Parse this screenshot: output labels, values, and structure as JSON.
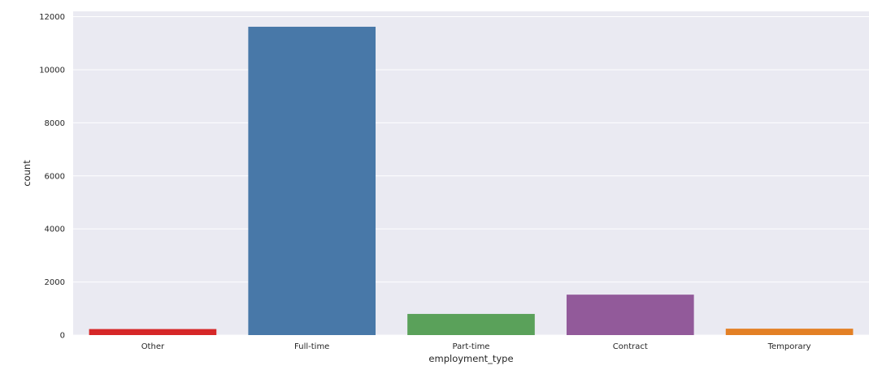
{
  "chart_data": {
    "type": "bar",
    "title": "",
    "xlabel": "employment_type",
    "ylabel": "count",
    "categories": [
      "Other",
      "Full-time",
      "Part-time",
      "Contract",
      "Temporary"
    ],
    "values": [
      227,
      11620,
      797,
      1524,
      241
    ],
    "colors": [
      "#d62728",
      "#4878a8",
      "#5aa15a",
      "#925a9a",
      "#e38025"
    ],
    "ylim": [
      0,
      12200
    ],
    "yticks": [
      0,
      2000,
      4000,
      6000,
      8000,
      10000,
      12000
    ],
    "grid": true,
    "background": "#eaeaf2"
  }
}
